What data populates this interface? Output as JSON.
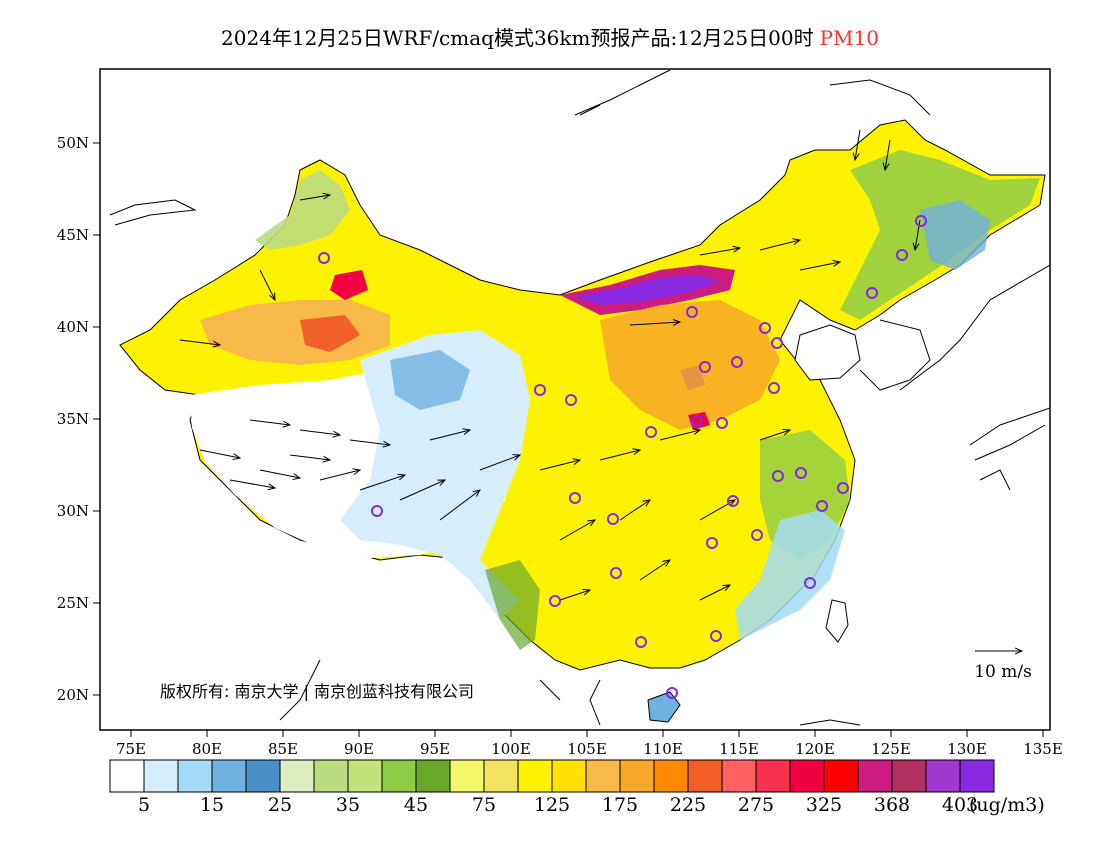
{
  "header": {
    "title": "2024年12月25日WRF/cmaq模式36km预报产品:12月25日00时",
    "pollutant": "PM10",
    "pollutant_color": "#ff3030"
  },
  "map": {
    "lon_ticks": [
      "75E",
      "80E",
      "85E",
      "90E",
      "95E",
      "100E",
      "105E",
      "110E",
      "115E",
      "120E",
      "125E",
      "130E",
      "135E"
    ],
    "lat_ticks": [
      "50N",
      "45N",
      "40N",
      "35N",
      "30N",
      "25N",
      "20N"
    ],
    "copyright": "版权所有: 南京大学 | 南京创蓝科技有限公司",
    "wind_reference": "10 m/s"
  },
  "colorbar": {
    "unit": "(ug/m3)",
    "labels": [
      "5",
      "15",
      "25",
      "35",
      "45",
      "75",
      "125",
      "175",
      "225",
      "275",
      "325",
      "368",
      "403"
    ],
    "colors": [
      "#ffffff",
      "#d6eefc",
      "#a3dcf6",
      "#6fb2e0",
      "#4a8fc8",
      "#dfeec0",
      "#bcdc80",
      "#c2e27a",
      "#8ecc48",
      "#6aa82c",
      "#f2f86a",
      "#f2e460",
      "#fff200",
      "#ffe000",
      "#f8b84a",
      "#f8a828",
      "#ff8800",
      "#f06028",
      "#ff6060",
      "#f83050",
      "#f00040",
      "#ff0000",
      "#cc1c80",
      "#b03060",
      "#a038d0",
      "#8828e0"
    ]
  }
}
